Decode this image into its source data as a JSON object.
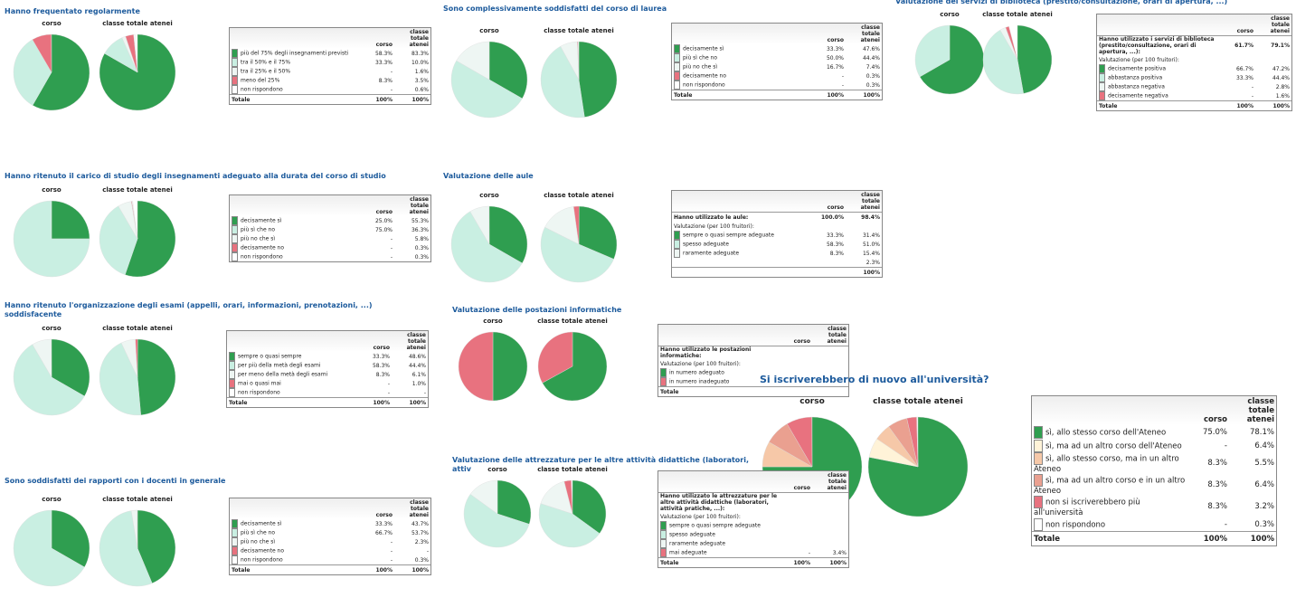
{
  "panels": [
    {
      "title": "Hanno frequentato regolarmente",
      "colors": [
        "#2f9e50",
        "#c9efe2",
        "#eef6f3",
        "#e8727f",
        "#ffffff"
      ],
      "pies": [
        {
          "label": "corso",
          "values": [
            58.3,
            33.3,
            0,
            8.3,
            0
          ]
        },
        {
          "label": "classe totale atenei",
          "values": [
            83.3,
            10.0,
            1.6,
            3.5,
            0.6
          ]
        }
      ],
      "table": {
        "header": [
          "corso",
          "classe totale atenei"
        ],
        "rows": [
          {
            "cells": [
              "più del 75% degli insegnamenti previsti",
              "58.3%",
              "83.3%"
            ],
            "color": "#2f9e50"
          },
          {
            "cells": [
              "tra il 50% e il 75%",
              "33.3%",
              "10.0%"
            ],
            "color": "#c9efe2"
          },
          {
            "cells": [
              "tra il 25% e il 50%",
              "-",
              "1.6%"
            ],
            "color": "#eef6f3"
          },
          {
            "cells": [
              "meno del 25%",
              "8.3%",
              "3.5%"
            ],
            "color": "#e8727f"
          },
          {
            "cells": [
              "non rispondono",
              "-",
              "0.6%"
            ],
            "color": "#ffffff"
          },
          {
            "cells": [
              "Totale",
              "100%",
              "100%"
            ],
            "total": true
          }
        ]
      }
    },
    {
      "title": "Hanno ritenuto il carico di studio degli insegnamenti adeguato alla durata del corso di studio",
      "colors": [
        "#2f9e50",
        "#c9efe2",
        "#eef6f3",
        "#e8727f",
        "#ffffff"
      ],
      "pies": [
        {
          "label": "corso",
          "values": [
            25.0,
            75.0,
            0,
            0,
            0
          ]
        },
        {
          "label": "classe totale atenei",
          "values": [
            55.3,
            36.3,
            5.8,
            0.3,
            0.3
          ]
        }
      ],
      "table": {
        "header": [
          "corso",
          "classe totale atenei"
        ],
        "rows": [
          {
            "cells": [
              "decisamente sì",
              "25.0%",
              "55.3%"
            ],
            "color": "#2f9e50"
          },
          {
            "cells": [
              "più sì che no",
              "75.0%",
              "36.3%"
            ],
            "color": "#c9efe2"
          },
          {
            "cells": [
              "più no che sì",
              "-",
              "5.8%"
            ],
            "color": "#eef6f3"
          },
          {
            "cells": [
              "decisamente no",
              "-",
              "0.3%"
            ],
            "color": "#e8727f"
          },
          {
            "cells": [
              "non rispondono",
              "-",
              "0.3%"
            ],
            "color": "#ffffff"
          }
        ]
      }
    },
    {
      "title": "Hanno ritenuto l'organizzazione degli esami (appelli, orari, informazioni, prenotazioni, ...) soddisfacente",
      "colors": [
        "#2f9e50",
        "#c9efe2",
        "#eef6f3",
        "#e8727f",
        "#ffffff"
      ],
      "pies": [
        {
          "label": "corso",
          "values": [
            33.3,
            58.3,
            8.3,
            0,
            0
          ]
        },
        {
          "label": "classe totale atenei",
          "values": [
            48.6,
            44.4,
            6.1,
            1.0,
            0
          ]
        }
      ],
      "table": {
        "header": [
          "corso",
          "classe totale atenei"
        ],
        "rows": [
          {
            "cells": [
              "sempre o quasi sempre",
              "33.3%",
              "48.6%"
            ],
            "color": "#2f9e50"
          },
          {
            "cells": [
              "per più della metà degli esami",
              "58.3%",
              "44.4%"
            ],
            "color": "#c9efe2"
          },
          {
            "cells": [
              "per meno della metà degli esami",
              "8.3%",
              "6.1%"
            ],
            "color": "#eef6f3"
          },
          {
            "cells": [
              "mai o quasi mai",
              "-",
              "1.0%"
            ],
            "color": "#e8727f"
          },
          {
            "cells": [
              "non rispondono",
              "-",
              "-"
            ],
            "color": "#ffffff"
          },
          {
            "cells": [
              "Totale",
              "100%",
              "100%"
            ],
            "total": true
          }
        ]
      }
    },
    {
      "title": "Sono soddisfatti dei rapporti con i docenti in generale",
      "colors": [
        "#2f9e50",
        "#c9efe2",
        "#eef6f3",
        "#e8727f",
        "#ffffff"
      ],
      "pies": [
        {
          "label": "corso",
          "values": [
            33.3,
            66.7,
            0,
            0,
            0
          ]
        },
        {
          "label": "classe totale atenei",
          "values": [
            43.7,
            53.7,
            2.3,
            0,
            0.3
          ]
        }
      ],
      "table": {
        "header": [
          "corso",
          "classe totale atenei"
        ],
        "rows": [
          {
            "cells": [
              "decisamente sì",
              "33.3%",
              "43.7%"
            ],
            "color": "#2f9e50"
          },
          {
            "cells": [
              "più sì che no",
              "66.7%",
              "53.7%"
            ],
            "color": "#c9efe2"
          },
          {
            "cells": [
              "più no che sì",
              "-",
              "2.3%"
            ],
            "color": "#eef6f3"
          },
          {
            "cells": [
              "decisamente no",
              "-",
              "-"
            ],
            "color": "#e8727f"
          },
          {
            "cells": [
              "non rispondono",
              "-",
              "0.3%"
            ],
            "color": "#ffffff"
          },
          {
            "cells": [
              "Totale",
              "100%",
              "100%"
            ],
            "total": true
          }
        ]
      }
    },
    {
      "title": "Sono complessivamente soddisfatti del corso di laurea",
      "colors": [
        "#2f9e50",
        "#c9efe2",
        "#eef6f3",
        "#e8727f",
        "#ffffff"
      ],
      "pies": [
        {
          "label": "corso",
          "values": [
            33.3,
            50.0,
            16.7,
            0,
            0
          ]
        },
        {
          "label": "classe totale atenei",
          "values": [
            47.6,
            44.4,
            7.4,
            0.3,
            0.3
          ]
        }
      ],
      "table": {
        "header": [
          "corso",
          "classe totale atenei"
        ],
        "rows": [
          {
            "cells": [
              "decisamente sì",
              "33.3%",
              "47.6%"
            ],
            "color": "#2f9e50"
          },
          {
            "cells": [
              "più sì che no",
              "50.0%",
              "44.4%"
            ],
            "color": "#c9efe2"
          },
          {
            "cells": [
              "più no che sì",
              "16.7%",
              "7.4%"
            ],
            "color": "#eef6f3"
          },
          {
            "cells": [
              "decisamente no",
              "-",
              "0.3%"
            ],
            "color": "#e8727f"
          },
          {
            "cells": [
              "non rispondono",
              "-",
              "0.3%"
            ],
            "color": "#ffffff"
          },
          {
            "cells": [
              "Totale",
              "100%",
              "100%"
            ],
            "total": true
          }
        ]
      }
    },
    {
      "title": "Valutazione delle aule",
      "colors": [
        "#2f9e50",
        "#c9efe2",
        "#eef6f3",
        "#e8727f"
      ],
      "pies": [
        {
          "label": "corso",
          "values": [
            33.3,
            58.3,
            8.3,
            0
          ]
        },
        {
          "label": "classe totale atenei",
          "values": [
            31.4,
            51.0,
            15.4,
            2.3
          ]
        }
      ],
      "table": {
        "header": [
          "corso",
          "classe totale atenei"
        ],
        "rows": [
          {
            "cells": [
              "Hanno utilizzato le aule:",
              "100.0%",
              "98.4%"
            ],
            "total": true
          },
          {
            "cells": [
              "Valutazione (per 100 fruitori):",
              null,
              null
            ]
          },
          {
            "cells": [
              "sempre o quasi sempre adeguate",
              "33.3%",
              "31.4%"
            ],
            "color": "#2f9e50"
          },
          {
            "cells": [
              "spesso adeguate",
              "58.3%",
              "51.0%"
            ],
            "color": "#c9efe2"
          },
          {
            "cells": [
              "raramente adeguate",
              "8.3%",
              "15.4%"
            ],
            "color": "#eef6f3"
          },
          {
            "cells": [
              null,
              null,
              "2.3%"
            ]
          },
          {
            "cells": [
              null,
              null,
              "100%"
            ],
            "total": true
          }
        ]
      }
    },
    {
      "title": "Valutazione delle postazioni informatiche",
      "colors": [
        "#2f9e50",
        "#e8727f"
      ],
      "pies": [
        {
          "label": "corso",
          "values": [
            50,
            50
          ]
        },
        {
          "label": "classe totale atenei",
          "values": [
            67,
            33
          ]
        }
      ],
      "table": {
        "header": [
          "corso",
          "classe totale atenei"
        ],
        "rows": [
          {
            "cells": [
              "Hanno utilizzato le postazioni informatiche:",
              null,
              null
            ],
            "total": true
          },
          {
            "cells": [
              "Valutazione (per 100 fruitori):",
              null,
              null
            ]
          },
          {
            "cells": [
              "in numero adeguato",
              null,
              null
            ],
            "color": "#2f9e50"
          },
          {
            "cells": [
              "in numero inadeguato",
              null,
              null
            ],
            "color": "#e8727f"
          },
          {
            "cells": [
              "Totale",
              null,
              null
            ],
            "total": true
          }
        ]
      }
    },
    {
      "title": "Valutazione delle attrezzature per le altre attività didattiche (laboratori, attiv",
      "colors": [
        "#2f9e50",
        "#c9efe2",
        "#eef6f3",
        "#e8727f"
      ],
      "pies": [
        {
          "label": "corso",
          "values": [
            30,
            55,
            15,
            0
          ]
        },
        {
          "label": "classe totale atenei",
          "values": [
            35,
            45,
            16,
            3.4
          ]
        }
      ],
      "table": {
        "header": [
          "corso",
          "classe totale atenei"
        ],
        "rows": [
          {
            "cells": [
              "Hanno utilizzato le attrezzature per le altre attività didattiche (laboratori, attività pratiche, ...):",
              null,
              null
            ],
            "total": true
          },
          {
            "cells": [
              "Valutazione (per 100 fruitori):",
              null,
              null
            ]
          },
          {
            "cells": [
              "sempre o quasi sempre adeguate",
              null,
              null
            ],
            "color": "#2f9e50"
          },
          {
            "cells": [
              "spesso adeguate",
              null,
              null
            ],
            "color": "#c9efe2"
          },
          {
            "cells": [
              "raramente adeguate",
              null,
              null
            ],
            "color": "#eef6f3"
          },
          {
            "cells": [
              "mai adeguate",
              "-",
              "3.4%"
            ],
            "color": "#e8727f"
          },
          {
            "cells": [
              "Totale",
              "100%",
              "100%"
            ],
            "total": true
          }
        ]
      }
    },
    {
      "title": "Valutazione dei servizi di biblioteca (prestito/consultazione, orari di apertura, ...)",
      "colors": [
        "#2f9e50",
        "#c9efe2",
        "#eef6f3",
        "#e8727f"
      ],
      "pies": [
        {
          "label": "corso",
          "values": [
            66.7,
            33.3,
            0,
            0
          ]
        },
        {
          "label": "classe totale atenei",
          "values": [
            47.2,
            44.4,
            2.8,
            1.6
          ]
        }
      ],
      "table": {
        "header": [
          "corso",
          "classe totale atenei"
        ],
        "rows": [
          {
            "cells": [
              "Hanno utilizzato i servizi di biblioteca (prestito/consultazione, orari di apertura, ...):",
              "61.7%",
              "79.1%"
            ],
            "total": true
          },
          {
            "cells": [
              "Valutazione (per 100 fruitori):",
              null,
              null
            ]
          },
          {
            "cells": [
              "decisamente positiva",
              "66.7%",
              "47.2%"
            ],
            "color": "#2f9e50"
          },
          {
            "cells": [
              "abbastanza positiva",
              "33.3%",
              "44.4%"
            ],
            "color": "#c9efe2"
          },
          {
            "cells": [
              "abbastanza negativa",
              "-",
              "2.8%"
            ],
            "color": "#eef6f3"
          },
          {
            "cells": [
              "decisamente negativa",
              "-",
              "1.6%"
            ],
            "color": "#e8727f"
          },
          {
            "cells": [
              "Totale",
              "100%",
              "100%"
            ],
            "total": true
          }
        ]
      }
    },
    {
      "title": "Si iscriverebbero di nuovo all'università?",
      "colors": [
        "#2f9e50",
        "#fff3d8",
        "#f6c8a8",
        "#eaa090",
        "#e8727f",
        "#ffffff"
      ],
      "pies": [
        {
          "label": "corso",
          "values": [
            75.0,
            0,
            8.3,
            8.3,
            8.3,
            0
          ]
        },
        {
          "label": "classe totale atenei",
          "values": [
            78.1,
            6.4,
            5.5,
            6.4,
            3.2,
            0.3
          ]
        }
      ],
      "table": {
        "header": [
          "corso",
          "classe totale atenei"
        ],
        "rows": [
          {
            "cells": [
              "sì, allo stesso corso dell'Ateneo",
              "75.0%",
              "78.1%"
            ],
            "color": "#2f9e50"
          },
          {
            "cells": [
              "sì, ma ad un altro corso dell'Ateneo",
              "-",
              "6.4%"
            ],
            "color": "#fff3d8"
          },
          {
            "cells": [
              "sì, allo stesso corso, ma in un altro Ateneo",
              "8.3%",
              "5.5%"
            ],
            "color": "#f6c8a8"
          },
          {
            "cells": [
              "sì, ma ad un altro corso e in un altro Ateneo",
              "8.3%",
              "6.4%"
            ],
            "color": "#eaa090"
          },
          {
            "cells": [
              "non si iscriverebbero più all'università",
              "8.3%",
              "3.2%"
            ],
            "color": "#e8727f"
          },
          {
            "cells": [
              "non rispondono",
              "-",
              "0.3%"
            ],
            "color": "#ffffff"
          },
          {
            "cells": [
              "Totale",
              "100%",
              "100%"
            ],
            "total": true
          }
        ]
      }
    }
  ]
}
